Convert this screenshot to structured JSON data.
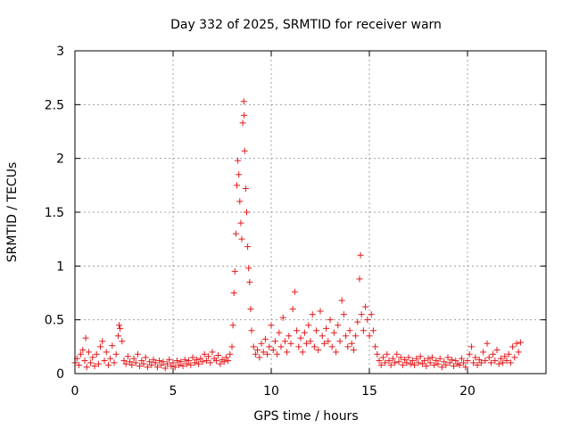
{
  "chart_data": {
    "type": "scatter",
    "title": "Day 332 of 2025, SRMTID for receiver warn",
    "xlabel": "GPS time / hours",
    "ylabel": "SRMTID / TECUs",
    "xlim": [
      0,
      24
    ],
    "ylim": [
      0,
      3
    ],
    "xticks": [
      0,
      5,
      10,
      15,
      20
    ],
    "yticks": [
      0,
      0.5,
      1,
      1.5,
      2,
      2.5,
      3
    ],
    "ytick_labels": [
      "0",
      "0.5",
      "1",
      "1.5",
      "2",
      "2.5",
      "3"
    ],
    "grid": true,
    "marker": "+",
    "color": "#e41a1c",
    "series": [
      {
        "name": "SRMTID",
        "points": [
          [
            0.0,
            0.1
          ],
          [
            0.1,
            0.14
          ],
          [
            0.2,
            0.08
          ],
          [
            0.3,
            0.18
          ],
          [
            0.4,
            0.22
          ],
          [
            0.5,
            0.12
          ],
          [
            0.55,
            0.33
          ],
          [
            0.6,
            0.06
          ],
          [
            0.7,
            0.2
          ],
          [
            0.8,
            0.1
          ],
          [
            0.9,
            0.15
          ],
          [
            1.0,
            0.07
          ],
          [
            1.1,
            0.18
          ],
          [
            1.2,
            0.09
          ],
          [
            1.3,
            0.25
          ],
          [
            1.4,
            0.3
          ],
          [
            1.5,
            0.12
          ],
          [
            1.6,
            0.2
          ],
          [
            1.7,
            0.08
          ],
          [
            1.8,
            0.14
          ],
          [
            1.9,
            0.26
          ],
          [
            2.0,
            0.1
          ],
          [
            2.1,
            0.18
          ],
          [
            2.2,
            0.35
          ],
          [
            2.25,
            0.45
          ],
          [
            2.3,
            0.42
          ],
          [
            2.4,
            0.3
          ],
          [
            2.5,
            0.12
          ],
          [
            2.6,
            0.09
          ],
          [
            2.7,
            0.16
          ],
          [
            2.8,
            0.11
          ],
          [
            2.9,
            0.08
          ],
          [
            3.0,
            0.14
          ],
          [
            3.1,
            0.1
          ],
          [
            3.2,
            0.18
          ],
          [
            3.3,
            0.07
          ],
          [
            3.4,
            0.12
          ],
          [
            3.5,
            0.09
          ],
          [
            3.6,
            0.15
          ],
          [
            3.7,
            0.06
          ],
          [
            3.8,
            0.11
          ],
          [
            3.9,
            0.08
          ],
          [
            4.0,
            0.13
          ],
          [
            4.1,
            0.1
          ],
          [
            4.2,
            0.06
          ],
          [
            4.3,
            0.12
          ],
          [
            4.4,
            0.08
          ],
          [
            4.5,
            0.11
          ],
          [
            4.6,
            0.05
          ],
          [
            4.7,
            0.09
          ],
          [
            4.8,
            0.13
          ],
          [
            4.9,
            0.07
          ],
          [
            5.0,
            0.1
          ],
          [
            5.1,
            0.06
          ],
          [
            5.2,
            0.12
          ],
          [
            5.3,
            0.08
          ],
          [
            5.4,
            0.11
          ],
          [
            5.5,
            0.07
          ],
          [
            5.6,
            0.13
          ],
          [
            5.7,
            0.09
          ],
          [
            5.8,
            0.12
          ],
          [
            5.9,
            0.08
          ],
          [
            6.0,
            0.15
          ],
          [
            6.1,
            0.1
          ],
          [
            6.2,
            0.13
          ],
          [
            6.3,
            0.09
          ],
          [
            6.4,
            0.14
          ],
          [
            6.5,
            0.11
          ],
          [
            6.6,
            0.18
          ],
          [
            6.7,
            0.12
          ],
          [
            6.8,
            0.16
          ],
          [
            6.9,
            0.1
          ],
          [
            7.0,
            0.2
          ],
          [
            7.1,
            0.14
          ],
          [
            7.2,
            0.12
          ],
          [
            7.3,
            0.17
          ],
          [
            7.4,
            0.09
          ],
          [
            7.5,
            0.13
          ],
          [
            7.6,
            0.11
          ],
          [
            7.7,
            0.15
          ],
          [
            7.8,
            0.12
          ],
          [
            7.9,
            0.18
          ],
          [
            8.0,
            0.25
          ],
          [
            8.05,
            0.45
          ],
          [
            8.1,
            0.75
          ],
          [
            8.15,
            0.95
          ],
          [
            8.2,
            1.3
          ],
          [
            8.25,
            1.75
          ],
          [
            8.3,
            1.98
          ],
          [
            8.35,
            1.85
          ],
          [
            8.4,
            1.6
          ],
          [
            8.45,
            1.4
          ],
          [
            8.5,
            1.25
          ],
          [
            8.55,
            2.33
          ],
          [
            8.6,
            2.53
          ],
          [
            8.62,
            2.4
          ],
          [
            8.65,
            2.07
          ],
          [
            8.7,
            1.72
          ],
          [
            8.75,
            1.5
          ],
          [
            8.8,
            1.18
          ],
          [
            8.85,
            0.98
          ],
          [
            8.9,
            0.85
          ],
          [
            8.95,
            0.6
          ],
          [
            9.0,
            0.4
          ],
          [
            9.1,
            0.25
          ],
          [
            9.2,
            0.18
          ],
          [
            9.3,
            0.22
          ],
          [
            9.4,
            0.15
          ],
          [
            9.5,
            0.28
          ],
          [
            9.6,
            0.2
          ],
          [
            9.7,
            0.32
          ],
          [
            9.8,
            0.18
          ],
          [
            9.9,
            0.25
          ],
          [
            10.0,
            0.45
          ],
          [
            10.1,
            0.22
          ],
          [
            10.2,
            0.3
          ],
          [
            10.3,
            0.18
          ],
          [
            10.4,
            0.38
          ],
          [
            10.5,
            0.25
          ],
          [
            10.6,
            0.52
          ],
          [
            10.7,
            0.3
          ],
          [
            10.8,
            0.2
          ],
          [
            10.9,
            0.35
          ],
          [
            11.0,
            0.28
          ],
          [
            11.1,
            0.6
          ],
          [
            11.2,
            0.76
          ],
          [
            11.3,
            0.4
          ],
          [
            11.4,
            0.25
          ],
          [
            11.5,
            0.33
          ],
          [
            11.6,
            0.2
          ],
          [
            11.7,
            0.38
          ],
          [
            11.8,
            0.28
          ],
          [
            11.9,
            0.45
          ],
          [
            12.0,
            0.3
          ],
          [
            12.1,
            0.55
          ],
          [
            12.2,
            0.25
          ],
          [
            12.3,
            0.4
          ],
          [
            12.4,
            0.22
          ],
          [
            12.5,
            0.58
          ],
          [
            12.6,
            0.35
          ],
          [
            12.7,
            0.28
          ],
          [
            12.8,
            0.42
          ],
          [
            12.9,
            0.3
          ],
          [
            13.0,
            0.5
          ],
          [
            13.1,
            0.25
          ],
          [
            13.2,
            0.38
          ],
          [
            13.3,
            0.2
          ],
          [
            13.4,
            0.45
          ],
          [
            13.5,
            0.3
          ],
          [
            13.6,
            0.68
          ],
          [
            13.7,
            0.55
          ],
          [
            13.8,
            0.35
          ],
          [
            13.9,
            0.25
          ],
          [
            14.0,
            0.4
          ],
          [
            14.1,
            0.28
          ],
          [
            14.2,
            0.22
          ],
          [
            14.3,
            0.35
          ],
          [
            14.4,
            0.48
          ],
          [
            14.5,
            0.88
          ],
          [
            14.55,
            1.1
          ],
          [
            14.6,
            0.55
          ],
          [
            14.7,
            0.4
          ],
          [
            14.8,
            0.62
          ],
          [
            14.9,
            0.5
          ],
          [
            15.0,
            0.35
          ],
          [
            15.1,
            0.55
          ],
          [
            15.2,
            0.4
          ],
          [
            15.3,
            0.25
          ],
          [
            15.4,
            0.18
          ],
          [
            15.5,
            0.12
          ],
          [
            15.6,
            0.08
          ],
          [
            15.7,
            0.15
          ],
          [
            15.8,
            0.1
          ],
          [
            15.9,
            0.18
          ],
          [
            16.0,
            0.12
          ],
          [
            16.1,
            0.08
          ],
          [
            16.2,
            0.14
          ],
          [
            16.3,
            0.1
          ],
          [
            16.4,
            0.18
          ],
          [
            16.5,
            0.11
          ],
          [
            16.6,
            0.15
          ],
          [
            16.7,
            0.08
          ],
          [
            16.8,
            0.13
          ],
          [
            16.9,
            0.1
          ],
          [
            17.0,
            0.15
          ],
          [
            17.1,
            0.09
          ],
          [
            17.2,
            0.12
          ],
          [
            17.3,
            0.08
          ],
          [
            17.4,
            0.14
          ],
          [
            17.5,
            0.1
          ],
          [
            17.6,
            0.16
          ],
          [
            17.7,
            0.09
          ],
          [
            17.8,
            0.12
          ],
          [
            17.9,
            0.07
          ],
          [
            18.0,
            0.14
          ],
          [
            18.1,
            0.1
          ],
          [
            18.2,
            0.15
          ],
          [
            18.3,
            0.08
          ],
          [
            18.4,
            0.12
          ],
          [
            18.5,
            0.09
          ],
          [
            18.6,
            0.14
          ],
          [
            18.7,
            0.06
          ],
          [
            18.8,
            0.11
          ],
          [
            18.9,
            0.08
          ],
          [
            19.0,
            0.15
          ],
          [
            19.1,
            0.1
          ],
          [
            19.2,
            0.13
          ],
          [
            19.3,
            0.07
          ],
          [
            19.4,
            0.12
          ],
          [
            19.5,
            0.09
          ],
          [
            19.6,
            0.08
          ],
          [
            19.7,
            0.14
          ],
          [
            19.8,
            0.1
          ],
          [
            19.9,
            0.06
          ],
          [
            20.0,
            0.12
          ],
          [
            20.1,
            0.18
          ],
          [
            20.2,
            0.25
          ],
          [
            20.3,
            0.1
          ],
          [
            20.4,
            0.15
          ],
          [
            20.5,
            0.08
          ],
          [
            20.6,
            0.13
          ],
          [
            20.7,
            0.1
          ],
          [
            20.8,
            0.2
          ],
          [
            20.9,
            0.12
          ],
          [
            21.0,
            0.28
          ],
          [
            21.1,
            0.15
          ],
          [
            21.2,
            0.1
          ],
          [
            21.3,
            0.18
          ],
          [
            21.4,
            0.12
          ],
          [
            21.5,
            0.22
          ],
          [
            21.6,
            0.09
          ],
          [
            21.7,
            0.14
          ],
          [
            21.8,
            0.1
          ],
          [
            21.9,
            0.16
          ],
          [
            22.0,
            0.12
          ],
          [
            22.1,
            0.18
          ],
          [
            22.2,
            0.1
          ],
          [
            22.3,
            0.25
          ],
          [
            22.4,
            0.15
          ],
          [
            22.5,
            0.28
          ],
          [
            22.6,
            0.2
          ],
          [
            22.7,
            0.29
          ]
        ]
      }
    ]
  }
}
